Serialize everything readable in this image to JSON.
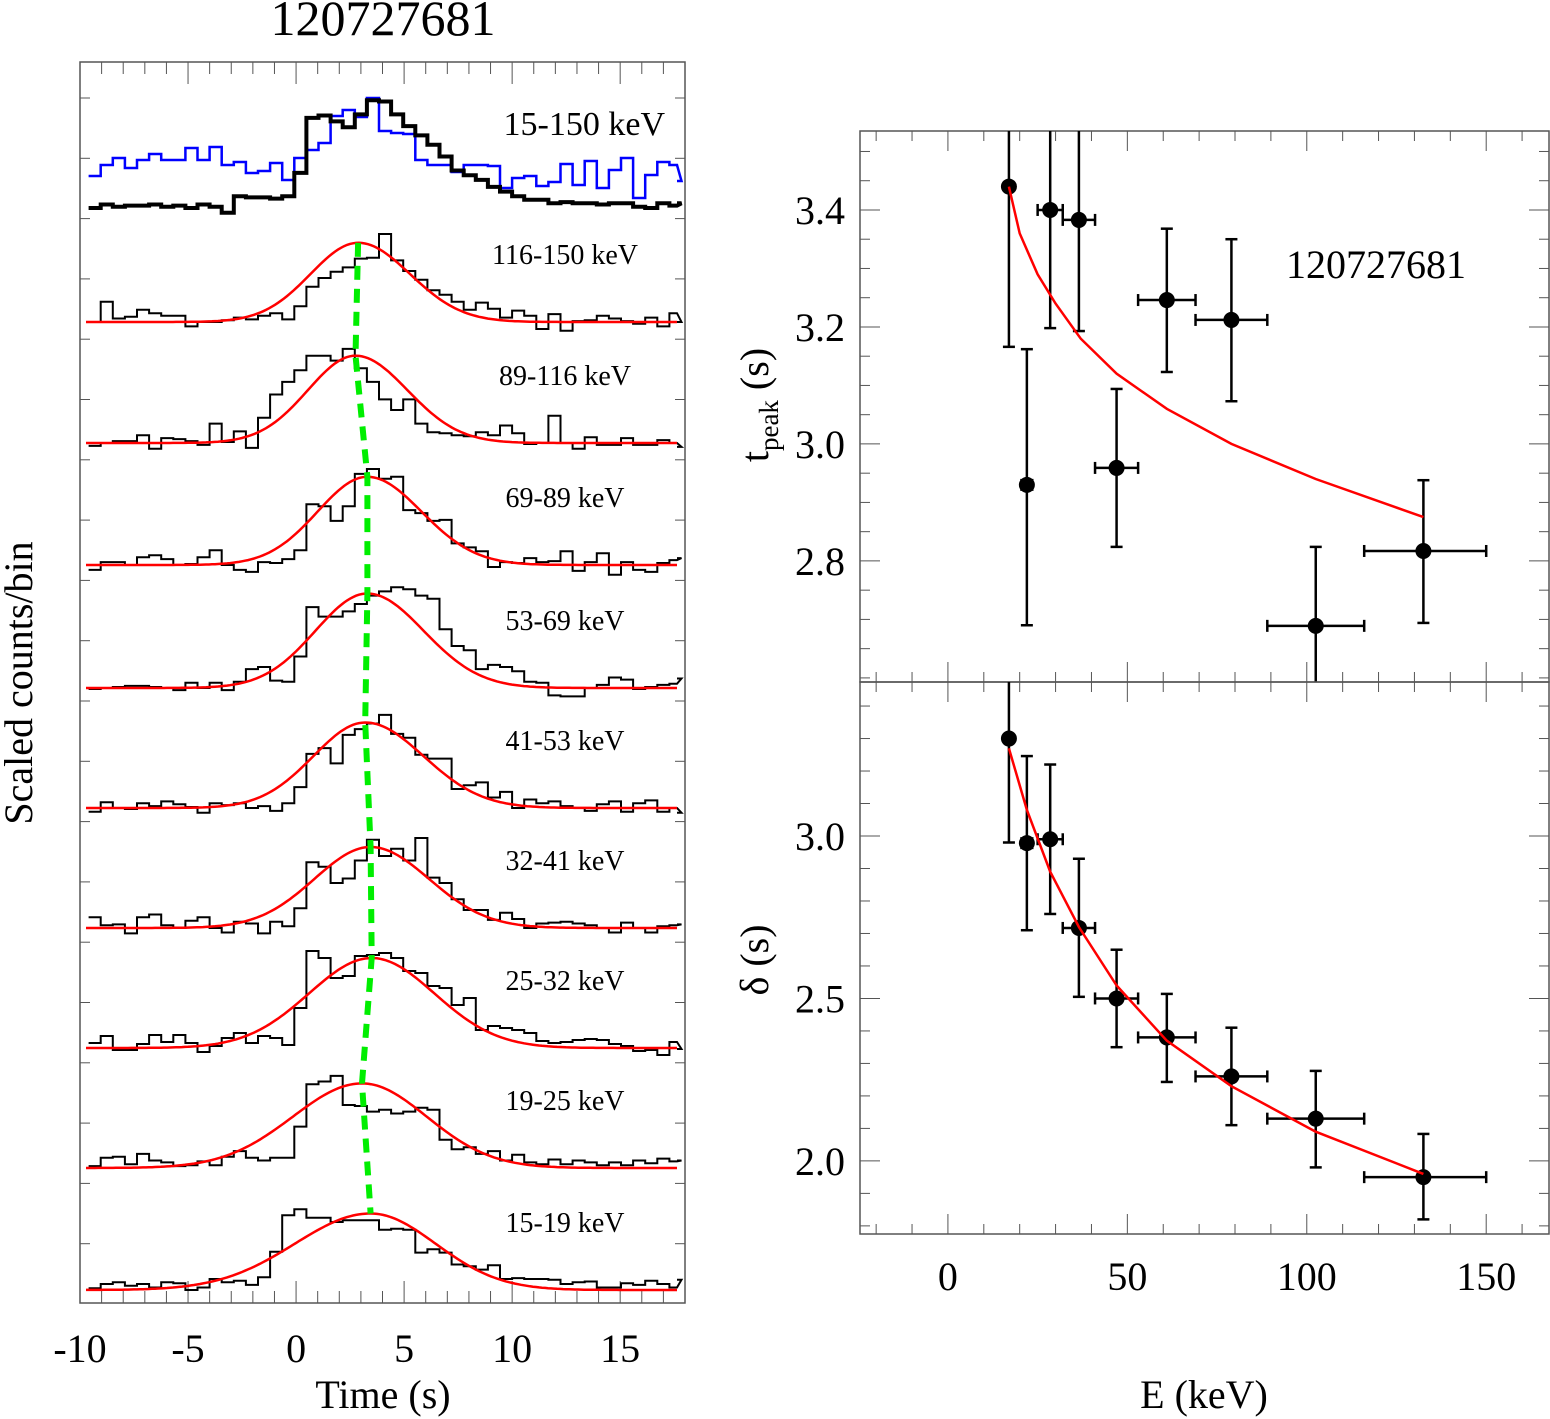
{
  "chart_data": [
    {
      "type": "line",
      "panel": "left",
      "title": "120727681",
      "xlabel": "Time (s)",
      "ylabel": "Scaled counts/bin",
      "xlim": [
        -10,
        18
      ],
      "xticks": [
        -10,
        -5,
        0,
        5,
        10,
        15
      ],
      "bin_start": -9.6,
      "bin_width": 0.56,
      "green_line_label": "peak-time trend",
      "colors": {
        "data": "#000000",
        "model": "#ff0000",
        "peak_line": "#00ee00",
        "total_soft": "#0000ff"
      },
      "top_band": {
        "label": "15-150 keV",
        "black": [
          0.06,
          0.09,
          0.07,
          0.08,
          0.08,
          0.09,
          0.07,
          0.08,
          0.06,
          0.09,
          0.07,
          0.02,
          0.16,
          0.15,
          0.15,
          0.14,
          0.16,
          0.36,
          0.83,
          0.85,
          0.8,
          0.75,
          0.86,
          0.98,
          0.97,
          0.86,
          0.76,
          0.68,
          0.6,
          0.5,
          0.38,
          0.34,
          0.3,
          0.24,
          0.2,
          0.16,
          0.13,
          0.13,
          0.1,
          0.11,
          0.1,
          0.1,
          0.09,
          0.1,
          0.1,
          0.07,
          0.06,
          0.1,
          0.08,
          0.1
        ],
        "blue": [
          0.22,
          0.33,
          0.4,
          0.3,
          0.38,
          0.44,
          0.38,
          0.38,
          0.5,
          0.38,
          0.51,
          0.33,
          0.36,
          0.25,
          0.27,
          0.35,
          0.18,
          0.4,
          0.48,
          0.55,
          0.82,
          0.88,
          0.81,
          1.0,
          0.67,
          0.65,
          0.64,
          0.38,
          0.33,
          0.33,
          0.26,
          0.33,
          0.33,
          0.32,
          0.1,
          0.2,
          0.22,
          0.12,
          0.16,
          0.34,
          0.13,
          0.37,
          0.1,
          0.28,
          0.4,
          0.0,
          0.23,
          0.36,
          0.33,
          0.17
        ],
        "top_norm": 0.99
      },
      "bands": [
        {
          "label": "116-150 keV",
          "peak": 2.87,
          "rise": 2.2,
          "decay": 2.4,
          "base": 0.0,
          "bins": [
            0.0,
            0.23,
            0.04,
            0.06,
            0.14,
            0.1,
            0.07,
            0.07,
            -0.05,
            0.0,
            0.0,
            0.02,
            0.05,
            0.03,
            0.07,
            0.1,
            0.03,
            0.18,
            0.4,
            0.5,
            0.57,
            0.62,
            0.72,
            0.73,
            1.0,
            0.7,
            0.58,
            0.48,
            0.36,
            0.31,
            0.23,
            0.14,
            0.22,
            0.15,
            0.05,
            0.13,
            0.07,
            -0.08,
            0.09,
            -0.1,
            0.01,
            0.02,
            0.07,
            0.04,
            0.01,
            -0.02,
            0.05,
            -0.05,
            0.1,
            0.0
          ]
        },
        {
          "label": "89-116 keV",
          "peak": 2.75,
          "rise": 2.2,
          "decay": 2.4,
          "base": 0.0,
          "bins": [
            -0.03,
            0.0,
            0.02,
            0.02,
            0.08,
            -0.06,
            0.05,
            0.04,
            0.02,
            -0.02,
            0.2,
            0.01,
            0.12,
            -0.05,
            0.26,
            0.5,
            0.63,
            0.75,
            0.9,
            0.9,
            0.85,
            0.97,
            0.77,
            0.63,
            0.45,
            0.34,
            0.45,
            0.2,
            0.11,
            0.1,
            0.08,
            0.07,
            0.11,
            0.08,
            0.18,
            0.1,
            -0.01,
            0.0,
            0.28,
            0.0,
            -0.06,
            0.06,
            -0.02,
            -0.02,
            0.05,
            -0.02,
            -0.02,
            0.03,
            0.0,
            -0.04
          ],
          "label_pos": "right"
        },
        {
          "label": "69-89 keV",
          "peak": 3.3,
          "rise": 2.3,
          "decay": 2.5,
          "base": 0.0,
          "bins": [
            -0.05,
            0.03,
            0.03,
            0.0,
            0.08,
            0.1,
            0.06,
            0.0,
            0.01,
            0.08,
            0.15,
            0.0,
            -0.05,
            -0.07,
            0.03,
            0.02,
            0.06,
            0.15,
            0.62,
            0.6,
            0.45,
            0.6,
            0.93,
            0.98,
            0.88,
            0.9,
            0.56,
            0.53,
            0.45,
            0.46,
            0.22,
            0.18,
            0.14,
            -0.02,
            0.03,
            0.02,
            0.07,
            0.03,
            0.04,
            0.14,
            -0.06,
            0.03,
            0.12,
            -0.1,
            0.03,
            -0.05,
            -0.07,
            0.02,
            0.05,
            0.07
          ]
        },
        {
          "label": "53-69 keV",
          "peak": 3.3,
          "rise": 2.4,
          "decay": 2.6,
          "base": 0.0,
          "bins": [
            -0.01,
            0.0,
            0.01,
            0.02,
            0.02,
            0.01,
            0.0,
            -0.02,
            0.05,
            0.0,
            0.05,
            -0.02,
            0.06,
            0.18,
            0.2,
            0.07,
            0.06,
            0.3,
            0.77,
            0.68,
            0.68,
            0.73,
            0.8,
            0.88,
            0.92,
            0.96,
            0.94,
            0.88,
            0.85,
            0.56,
            0.4,
            0.36,
            0.18,
            0.22,
            0.2,
            0.16,
            0.06,
            0.05,
            -0.07,
            -0.08,
            -0.08,
            0.0,
            0.03,
            0.1,
            0.08,
            -0.01,
            0.01,
            0.03,
            0.04,
            0.09
          ]
        },
        {
          "label": "41-53 keV",
          "peak": 3.2,
          "rise": 2.4,
          "decay": 2.7,
          "base": 0.0,
          "bins": [
            -0.04,
            0.06,
            0.0,
            -0.01,
            0.05,
            0.02,
            0.07,
            0.04,
            0.01,
            -0.05,
            0.05,
            0.03,
            0.05,
            0.0,
            0.02,
            -0.03,
            0.05,
            0.22,
            0.57,
            0.63,
            0.47,
            0.77,
            0.83,
            0.89,
            0.98,
            0.78,
            0.74,
            0.56,
            0.52,
            0.52,
            0.2,
            0.24,
            0.27,
            0.11,
            0.17,
            0.0,
            0.09,
            0.05,
            0.07,
            0.02,
            0.0,
            -0.03,
            0.04,
            0.07,
            -0.04,
            0.05,
            0.08,
            -0.04,
            0.0,
            -0.05
          ]
        },
        {
          "label": "32-41 keV",
          "peak": 3.45,
          "rise": 2.6,
          "decay": 2.7,
          "base": 0.0,
          "bins": [
            0.12,
            0.03,
            0.04,
            -0.06,
            0.12,
            0.15,
            0.03,
            0.0,
            0.08,
            0.12,
            0.0,
            -0.05,
            0.07,
            0.05,
            -0.06,
            0.07,
            0.02,
            0.22,
            0.73,
            0.68,
            0.5,
            0.55,
            0.75,
            0.98,
            0.8,
            0.88,
            0.75,
            1.0,
            0.56,
            0.5,
            0.32,
            0.2,
            0.2,
            0.09,
            0.17,
            0.1,
            0.0,
            0.05,
            0.06,
            0.07,
            0.05,
            0.03,
            0.0,
            -0.05,
            0.06,
            0.0,
            -0.05,
            0.02,
            0.03,
            0.04
          ]
        },
        {
          "label": "25-32 keV",
          "peak": 3.5,
          "rise": 2.9,
          "decay": 2.9,
          "base": 0.0,
          "bins": [
            0.05,
            0.12,
            -0.02,
            -0.02,
            0.04,
            0.13,
            0.06,
            0.13,
            0.05,
            -0.04,
            0.02,
            0.1,
            0.15,
            0.05,
            0.12,
            0.1,
            0.03,
            0.4,
            0.97,
            0.9,
            0.7,
            0.72,
            0.92,
            0.93,
            0.95,
            0.9,
            0.77,
            0.75,
            0.62,
            0.6,
            0.43,
            0.5,
            0.18,
            0.22,
            0.2,
            0.18,
            0.15,
            0.07,
            0.05,
            0.06,
            0.08,
            0.09,
            0.08,
            0.04,
            0.02,
            -0.03,
            -0.02,
            -0.07,
            0.06,
            -0.01
          ]
        },
        {
          "label": "19-25 keV",
          "peak": 3.05,
          "rise": 3.2,
          "decay": 3.0,
          "base": 0.0,
          "bins": [
            0.02,
            0.11,
            0.12,
            0.04,
            0.15,
            0.08,
            0.06,
            0.02,
            0.03,
            0.07,
            0.03,
            0.12,
            0.18,
            0.11,
            0.08,
            0.11,
            0.11,
            0.44,
            0.89,
            0.92,
            0.98,
            0.67,
            0.66,
            0.6,
            0.62,
            0.58,
            0.6,
            0.64,
            0.62,
            0.3,
            0.2,
            0.22,
            0.15,
            0.18,
            0.08,
            0.14,
            0.06,
            0.04,
            0.09,
            0.04,
            0.08,
            0.06,
            0.03,
            0.06,
            0.03,
            0.08,
            0.05,
            0.1,
            0.07,
            0.08
          ]
        },
        {
          "label": "15-19 keV",
          "peak": 3.45,
          "rise": 3.5,
          "decay": 3.0,
          "base": 0.0,
          "bins": [
            0.02,
            0.07,
            0.09,
            0.05,
            0.07,
            0.03,
            0.09,
            0.08,
            0.0,
            0.03,
            0.13,
            0.09,
            0.11,
            0.06,
            0.15,
            0.45,
            0.88,
            0.95,
            0.85,
            0.85,
            0.8,
            0.82,
            0.82,
            0.82,
            0.71,
            0.72,
            0.71,
            0.44,
            0.48,
            0.44,
            0.3,
            0.28,
            0.24,
            0.29,
            0.13,
            0.14,
            0.13,
            0.13,
            0.12,
            0.07,
            0.09,
            0.1,
            0.03,
            0.03,
            0.08,
            0.06,
            0.11,
            0.07,
            0.03,
            0.12
          ]
        }
      ]
    },
    {
      "type": "scatter",
      "panel": "right-top",
      "annotation": "120727681",
      "ylabel_main": "t",
      "ylabel_sub": "peak",
      "ylabel_unit": " (s)",
      "xlim": [
        -24.5,
        167.5
      ],
      "ylim": [
        2.593,
        3.535
      ],
      "yticks": [
        2.8,
        3.0,
        3.2,
        3.4
      ],
      "ytick_labels": [
        "2.8",
        "3.0",
        "3.2",
        "3.4"
      ],
      "points": [
        {
          "E": 17.0,
          "E_lo": 16.5,
          "E_hi": 17.5,
          "y": 3.44,
          "y_lo": 3.166,
          "y_hi": 3.6
        },
        {
          "E": 22.0,
          "E_lo": 20.5,
          "E_hi": 23.5,
          "y": 2.93,
          "y_lo": 2.69,
          "y_hi": 3.162
        },
        {
          "E": 28.5,
          "E_lo": 25.0,
          "E_hi": 32.0,
          "y": 3.4,
          "y_lo": 3.198,
          "y_hi": 3.6
        },
        {
          "E": 36.5,
          "E_lo": 32.0,
          "E_hi": 41.0,
          "y": 3.383,
          "y_lo": 3.193,
          "y_hi": 3.6
        },
        {
          "E": 47.0,
          "E_lo": 41.0,
          "E_hi": 53.0,
          "y": 2.959,
          "y_lo": 2.824,
          "y_hi": 3.094
        },
        {
          "E": 61.0,
          "E_lo": 53.0,
          "E_hi": 69.0,
          "y": 3.246,
          "y_lo": 3.123,
          "y_hi": 3.368
        },
        {
          "E": 79.0,
          "E_lo": 69.0,
          "E_hi": 89.0,
          "y": 3.212,
          "y_lo": 3.073,
          "y_hi": 3.35
        },
        {
          "E": 102.5,
          "E_lo": 89.0,
          "E_hi": 116.0,
          "y": 2.689,
          "y_lo": 2.5,
          "y_hi": 2.824
        },
        {
          "E": 132.5,
          "E_lo": 116.0,
          "E_hi": 150.0,
          "y": 2.817,
          "y_lo": 2.694,
          "y_hi": 2.938
        }
      ],
      "model": {
        "E": [
          17,
          20,
          25,
          30,
          37,
          47,
          61,
          79,
          102.5,
          132.5
        ],
        "y": [
          3.44,
          3.36,
          3.29,
          3.24,
          3.18,
          3.12,
          3.06,
          3.0,
          2.94,
          2.875
        ]
      }
    },
    {
      "type": "scatter",
      "panel": "right-bottom",
      "xlabel": "E (keV)",
      "ylabel": "δ (s)",
      "xlim": [
        -24.5,
        167.5
      ],
      "ylim": [
        1.775,
        3.474
      ],
      "xticks": [
        0,
        50,
        100,
        150
      ],
      "xtick_labels": [
        "0",
        "50",
        "100",
        "150"
      ],
      "yticks": [
        2.0,
        2.5,
        3.0
      ],
      "ytick_labels": [
        "2.0",
        "2.5",
        "3.0"
      ],
      "points": [
        {
          "E": 17.0,
          "E_lo": 16.5,
          "E_hi": 17.5,
          "y": 3.3,
          "y_lo": 2.98,
          "y_hi": 3.6
        },
        {
          "E": 22.0,
          "E_lo": 20.5,
          "E_hi": 23.5,
          "y": 2.978,
          "y_lo": 2.71,
          "y_hi": 3.246
        },
        {
          "E": 28.5,
          "E_lo": 25.0,
          "E_hi": 32.0,
          "y": 2.99,
          "y_lo": 2.76,
          "y_hi": 3.22
        },
        {
          "E": 36.5,
          "E_lo": 32.0,
          "E_hi": 41.0,
          "y": 2.717,
          "y_lo": 2.505,
          "y_hi": 2.93
        },
        {
          "E": 47.0,
          "E_lo": 41.0,
          "E_hi": 53.0,
          "y": 2.5,
          "y_lo": 2.35,
          "y_hi": 2.65
        },
        {
          "E": 61.0,
          "E_lo": 53.0,
          "E_hi": 69.0,
          "y": 2.38,
          "y_lo": 2.243,
          "y_hi": 2.514
        },
        {
          "E": 79.0,
          "E_lo": 69.0,
          "E_hi": 89.0,
          "y": 2.26,
          "y_lo": 2.11,
          "y_hi": 2.41
        },
        {
          "E": 102.5,
          "E_lo": 89.0,
          "E_hi": 116.0,
          "y": 2.13,
          "y_lo": 1.98,
          "y_hi": 2.277
        },
        {
          "E": 132.5,
          "E_lo": 116.0,
          "E_hi": 150.0,
          "y": 1.95,
          "y_lo": 1.82,
          "y_hi": 2.083
        }
      ],
      "model": {
        "E": [
          17,
          22,
          28.5,
          36.5,
          47,
          61,
          79,
          102.5,
          132.5
        ],
        "y": [
          3.27,
          3.08,
          2.89,
          2.72,
          2.54,
          2.37,
          2.23,
          2.09,
          1.96
        ]
      }
    }
  ]
}
